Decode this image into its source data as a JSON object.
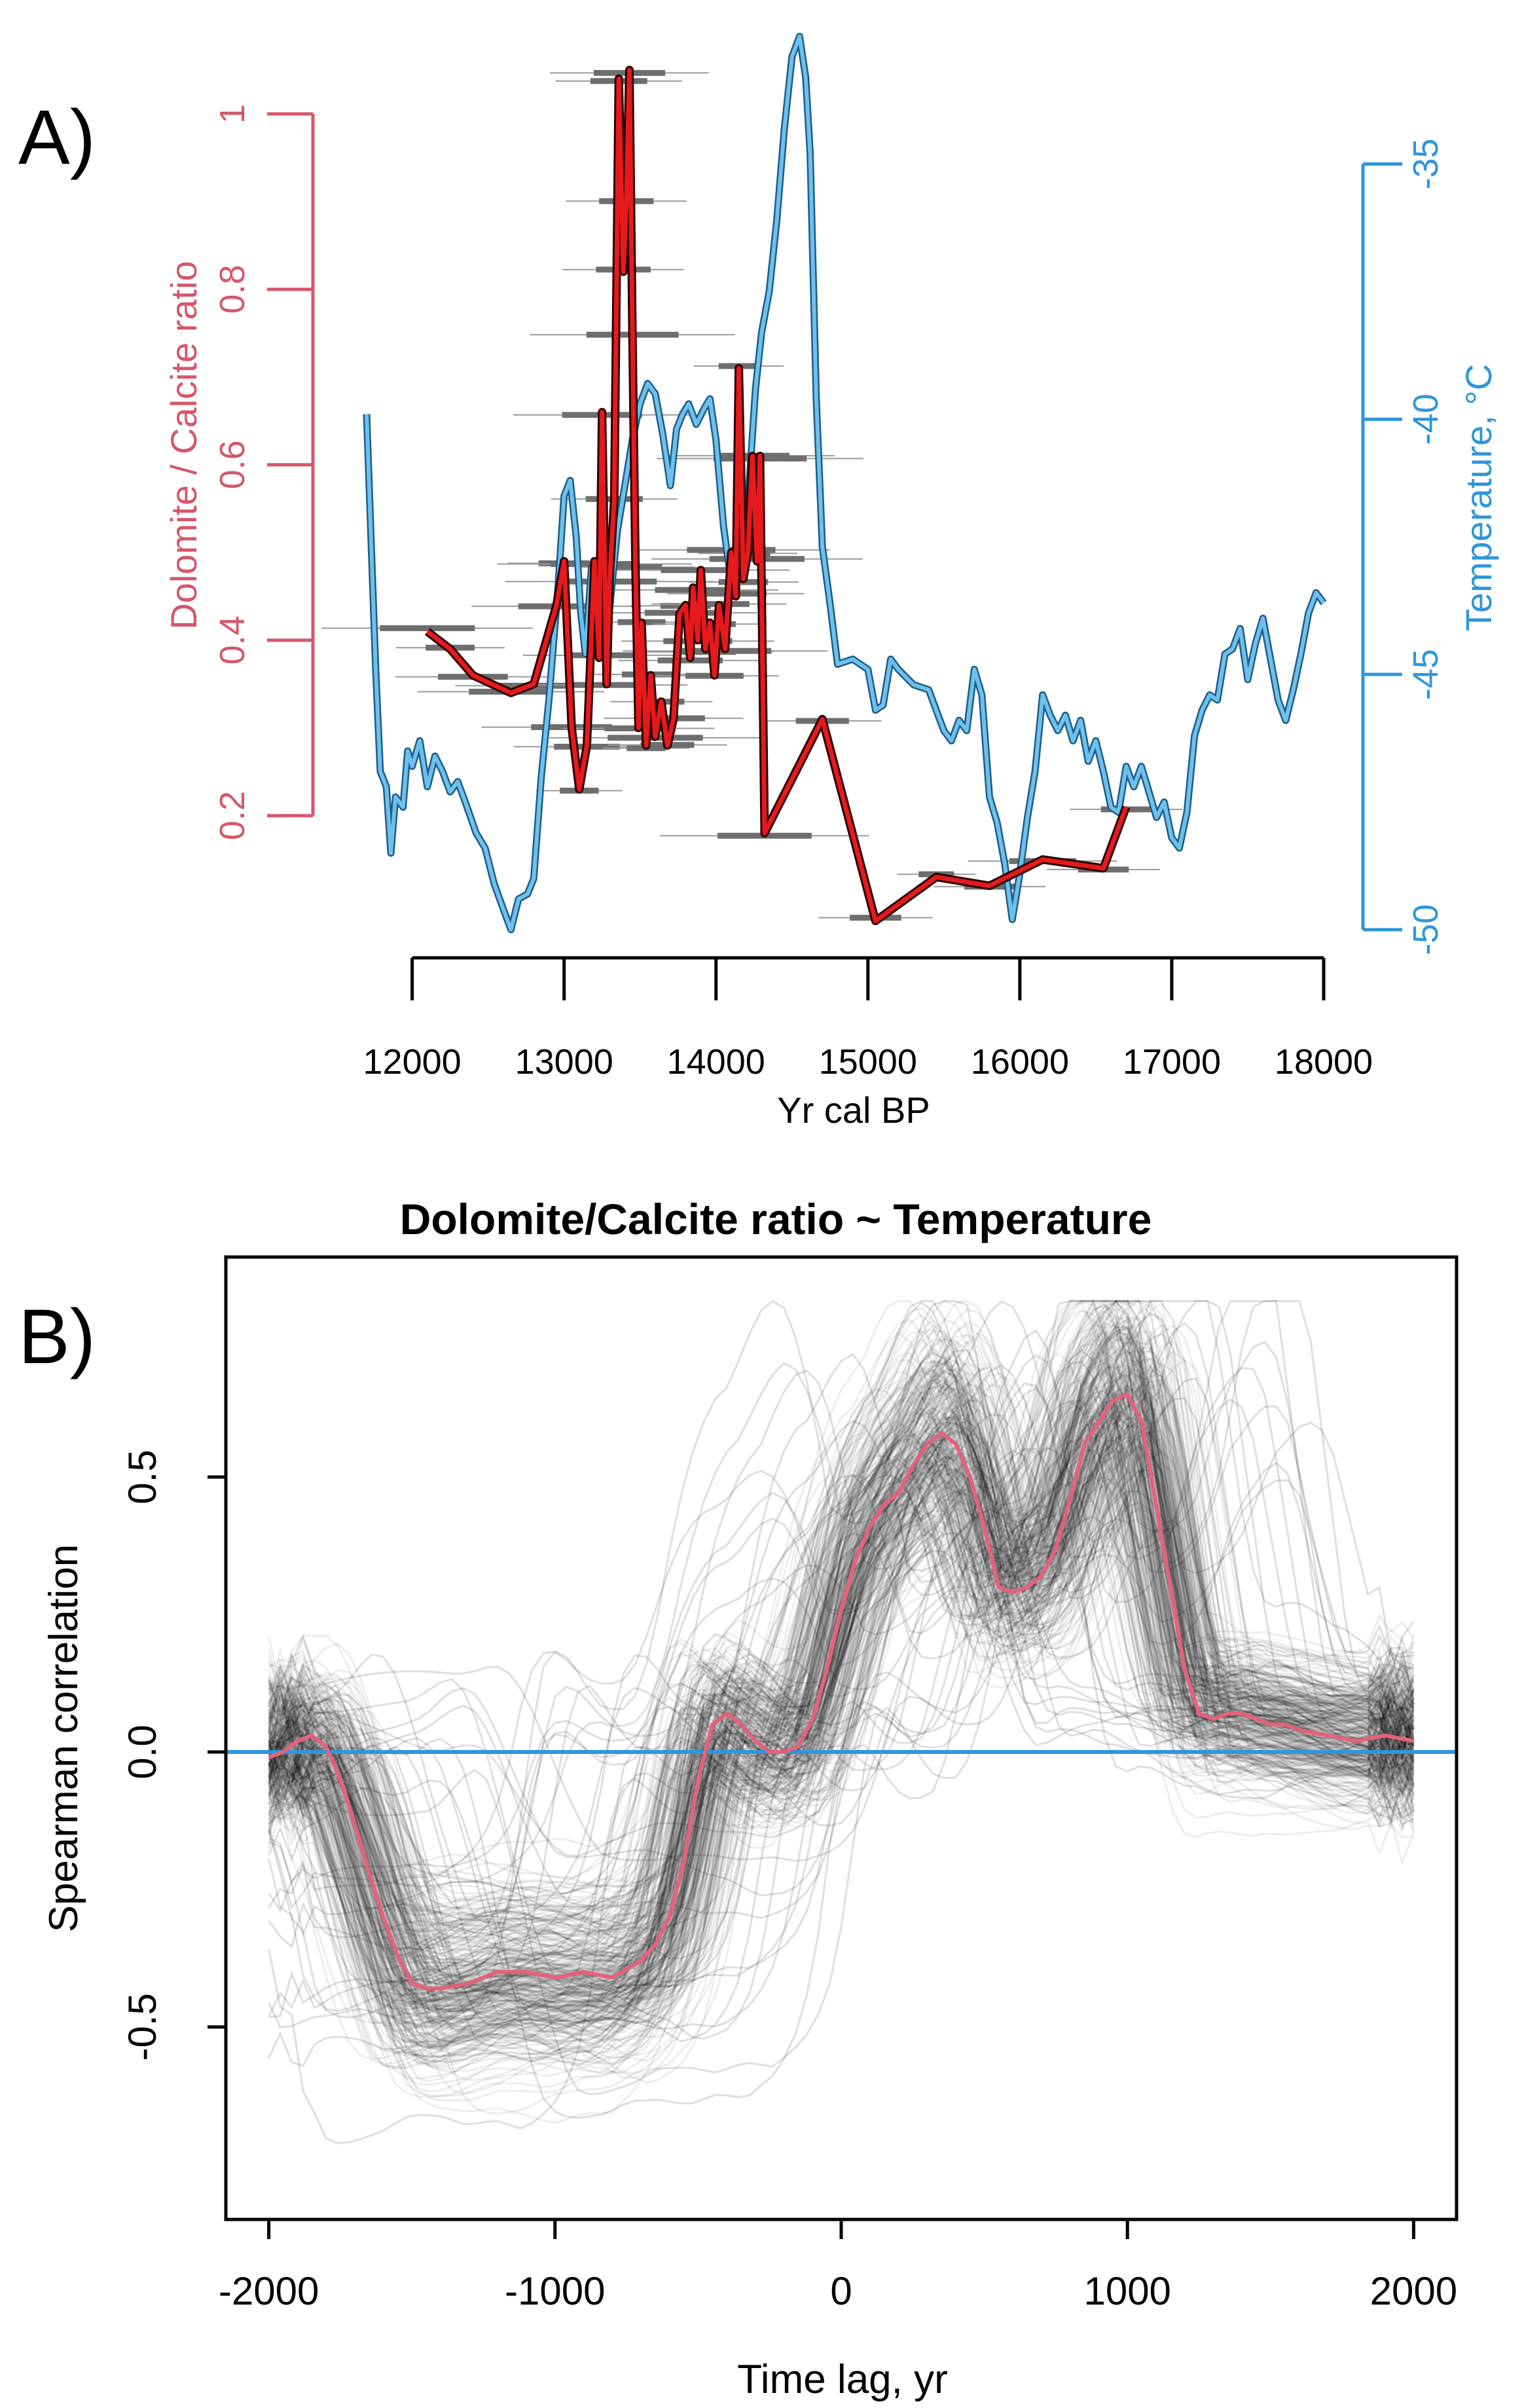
{
  "chart_data": [
    {
      "panel_label": "A)",
      "type": "line",
      "xlabel": "Yr cal BP",
      "x_ticks": [
        12000,
        13000,
        14000,
        15000,
        16000,
        17000,
        18000
      ],
      "xlim": [
        11700,
        18000
      ],
      "left_axis": {
        "label": "Dolomite / Calcite ratio",
        "ticks": [
          "0.2",
          "0.4",
          "0.6",
          "0.8",
          "1"
        ],
        "range": [
          0.07,
          1.1
        ],
        "color": "#d6566a"
      },
      "right_axis": {
        "label": "Temperature, °C",
        "ticks": [
          "-50",
          "-45",
          "-40",
          "-35"
        ],
        "range": [
          -50,
          -32.3
        ],
        "color": "#2e96dc"
      },
      "series": [
        {
          "axis": "left",
          "color": "#e41a1c",
          "outline": "#2a0000",
          "points": [
            [
              12100,
              0.41
            ],
            [
              12250,
              0.39
            ],
            [
              12400,
              0.36
            ],
            [
              12650,
              0.34
            ],
            [
              12800,
              0.35
            ],
            [
              12950,
              0.44
            ],
            [
              13000,
              0.49
            ],
            [
              13050,
              0.3
            ],
            [
              13100,
              0.23
            ],
            [
              13150,
              0.28
            ],
            [
              13200,
              0.49
            ],
            [
              13230,
              0.38
            ],
            [
              13250,
              0.66
            ],
            [
              13280,
              0.35
            ],
            [
              13300,
              0.47
            ],
            [
              13330,
              0.56
            ],
            [
              13360,
              1.04
            ],
            [
              13390,
              0.82
            ],
            [
              13410,
              0.9
            ],
            [
              13430,
              1.05
            ],
            [
              13450,
              0.75
            ],
            [
              13470,
              0.48
            ],
            [
              13490,
              0.3
            ],
            [
              13510,
              0.42
            ],
            [
              13540,
              0.28
            ],
            [
              13570,
              0.36
            ],
            [
              13600,
              0.29
            ],
            [
              13640,
              0.33
            ],
            [
              13680,
              0.28
            ],
            [
              13720,
              0.31
            ],
            [
              13760,
              0.43
            ],
            [
              13800,
              0.44
            ],
            [
              13830,
              0.38
            ],
            [
              13850,
              0.46
            ],
            [
              13880,
              0.4
            ],
            [
              13900,
              0.48
            ],
            [
              13930,
              0.39
            ],
            [
              13960,
              0.42
            ],
            [
              13990,
              0.36
            ],
            [
              14020,
              0.44
            ],
            [
              14060,
              0.39
            ],
            [
              14100,
              0.5
            ],
            [
              14130,
              0.45
            ],
            [
              14150,
              0.71
            ],
            [
              14180,
              0.47
            ],
            [
              14210,
              0.5
            ],
            [
              14240,
              0.61
            ],
            [
              14270,
              0.49
            ],
            [
              14290,
              0.61
            ],
            [
              14320,
              0.18
            ],
            [
              14700,
              0.31
            ],
            [
              15050,
              0.08
            ],
            [
              15450,
              0.13
            ],
            [
              15800,
              0.12
            ],
            [
              16150,
              0.15
            ],
            [
              16550,
              0.14
            ],
            [
              16700,
              0.21
            ]
          ]
        },
        {
          "axis": "right",
          "color": "#6ec0ec",
          "outline": "#1d5c86",
          "points": [
            [
              11700,
              -39.9
            ],
            [
              11760,
              -44.9
            ],
            [
              11790,
              -46.9
            ],
            [
              11830,
              -47.2
            ],
            [
              11860,
              -48.5
            ],
            [
              11890,
              -47.4
            ],
            [
              11940,
              -47.6
            ],
            [
              11970,
              -46.5
            ],
            [
              12000,
              -46.8
            ],
            [
              12050,
              -46.3
            ],
            [
              12100,
              -47.2
            ],
            [
              12150,
              -46.6
            ],
            [
              12200,
              -46.9
            ],
            [
              12250,
              -47.3
            ],
            [
              12300,
              -47.1
            ],
            [
              12350,
              -47.5
            ],
            [
              12420,
              -48.1
            ],
            [
              12480,
              -48.4
            ],
            [
              12540,
              -49.1
            ],
            [
              12600,
              -49.6
            ],
            [
              12650,
              -50.0
            ],
            [
              12700,
              -49.4
            ],
            [
              12760,
              -49.3
            ],
            [
              12800,
              -49.0
            ],
            [
              12850,
              -47.0
            ],
            [
              12900,
              -45.5
            ],
            [
              12960,
              -43.3
            ],
            [
              13000,
              -41.5
            ],
            [
              13040,
              -41.2
            ],
            [
              13080,
              -42.3
            ],
            [
              13110,
              -43.8
            ],
            [
              13140,
              -44.6
            ],
            [
              13180,
              -42.9
            ],
            [
              13220,
              -43.6
            ],
            [
              13260,
              -42.3
            ],
            [
              13300,
              -43.7
            ],
            [
              13350,
              -42.2
            ],
            [
              13400,
              -41.3
            ],
            [
              13450,
              -40.4
            ],
            [
              13500,
              -39.7
            ],
            [
              13550,
              -39.3
            ],
            [
              13600,
              -39.5
            ],
            [
              13650,
              -40.3
            ],
            [
              13700,
              -41.3
            ],
            [
              13740,
              -40.2
            ],
            [
              13780,
              -39.9
            ],
            [
              13820,
              -39.7
            ],
            [
              13870,
              -40.1
            ],
            [
              13920,
              -39.8
            ],
            [
              13960,
              -39.6
            ],
            [
              14000,
              -40.4
            ],
            [
              14050,
              -42.1
            ],
            [
              14100,
              -43.2
            ],
            [
              14140,
              -42.5
            ],
            [
              14180,
              -43.1
            ],
            [
              14220,
              -41.2
            ],
            [
              14260,
              -39.4
            ],
            [
              14300,
              -38.3
            ],
            [
              14350,
              -37.5
            ],
            [
              14400,
              -36.1
            ],
            [
              14450,
              -34.3
            ],
            [
              14500,
              -32.9
            ],
            [
              14550,
              -32.5
            ],
            [
              14590,
              -33.3
            ],
            [
              14620,
              -34.8
            ],
            [
              14660,
              -39.6
            ],
            [
              14700,
              -42.5
            ],
            [
              14750,
              -43.6
            ],
            [
              14800,
              -44.8
            ],
            [
              14900,
              -44.7
            ],
            [
              15000,
              -44.9
            ],
            [
              15050,
              -45.7
            ],
            [
              15100,
              -45.6
            ],
            [
              15150,
              -44.7
            ],
            [
              15200,
              -44.9
            ],
            [
              15300,
              -45.2
            ],
            [
              15400,
              -45.3
            ],
            [
              15500,
              -46.1
            ],
            [
              15550,
              -46.3
            ],
            [
              15600,
              -45.9
            ],
            [
              15650,
              -46.1
            ],
            [
              15700,
              -44.9
            ],
            [
              15750,
              -45.4
            ],
            [
              15800,
              -47.4
            ],
            [
              15850,
              -47.9
            ],
            [
              15900,
              -48.7
            ],
            [
              15950,
              -49.8
            ],
            [
              16000,
              -48.9
            ],
            [
              16050,
              -47.8
            ],
            [
              16100,
              -46.9
            ],
            [
              16150,
              -45.4
            ],
            [
              16200,
              -45.8
            ],
            [
              16250,
              -46.1
            ],
            [
              16300,
              -45.8
            ],
            [
              16350,
              -46.3
            ],
            [
              16400,
              -45.9
            ],
            [
              16450,
              -46.7
            ],
            [
              16500,
              -46.3
            ],
            [
              16550,
              -46.9
            ],
            [
              16600,
              -47.6
            ],
            [
              16650,
              -47.7
            ],
            [
              16700,
              -46.8
            ],
            [
              16750,
              -47.2
            ],
            [
              16800,
              -46.8
            ],
            [
              16850,
              -47.3
            ],
            [
              16900,
              -47.8
            ],
            [
              16950,
              -47.5
            ],
            [
              17000,
              -48.2
            ],
            [
              17050,
              -48.4
            ],
            [
              17100,
              -47.7
            ],
            [
              17150,
              -46.2
            ],
            [
              17200,
              -45.7
            ],
            [
              17250,
              -45.4
            ],
            [
              17300,
              -45.5
            ],
            [
              17350,
              -44.6
            ],
            [
              17400,
              -44.5
            ],
            [
              17450,
              -44.1
            ],
            [
              17500,
              -45.1
            ],
            [
              17550,
              -44.4
            ],
            [
              17600,
              -43.9
            ],
            [
              17650,
              -44.7
            ],
            [
              17700,
              -45.5
            ],
            [
              17750,
              -45.9
            ],
            [
              17800,
              -45.3
            ],
            [
              17850,
              -44.6
            ],
            [
              17900,
              -43.8
            ],
            [
              17950,
              -43.4
            ],
            [
              18000,
              -43.6
            ]
          ]
        }
      ]
    },
    {
      "panel_label": "B)",
      "type": "line",
      "title": "Dolomite/Calcite ratio ~ Temperature",
      "xlabel": "Time lag, yr",
      "ylabel": "Spearman correlation",
      "x_ticks": [
        "-2000",
        "-1000",
        "0",
        "1000",
        "2000"
      ],
      "y_ticks": [
        "-0.5",
        "0.0",
        "0.5"
      ],
      "xlim": [
        -2150,
        2150
      ],
      "ylim": [
        -0.85,
        0.9
      ],
      "zero_line_color": "#2e96dc",
      "ensemble_color": "#000000",
      "median_color": "#e4627a",
      "median": {
        "x": [
          -2000,
          -1950,
          -1900,
          -1850,
          -1800,
          -1750,
          -1700,
          -1650,
          -1600,
          -1550,
          -1500,
          -1450,
          -1400,
          -1300,
          -1200,
          -1100,
          -1000,
          -900,
          -800,
          -700,
          -650,
          -600,
          -550,
          -500,
          -450,
          -400,
          -350,
          -300,
          -250,
          -200,
          -150,
          -100,
          -50,
          0,
          50,
          100,
          150,
          200,
          250,
          300,
          350,
          400,
          450,
          500,
          550,
          600,
          650,
          700,
          750,
          800,
          850,
          900,
          950,
          1000,
          1050,
          1100,
          1150,
          1200,
          1250,
          1300,
          1350,
          1400,
          1450,
          1500,
          1550,
          1600,
          1700,
          1800,
          1900,
          2000
        ],
        "y": [
          -0.01,
          0.0,
          0.02,
          0.03,
          0.01,
          -0.05,
          -0.13,
          -0.22,
          -0.3,
          -0.37,
          -0.42,
          -0.43,
          -0.43,
          -0.42,
          -0.4,
          -0.4,
          -0.41,
          -0.4,
          -0.41,
          -0.38,
          -0.35,
          -0.3,
          -0.2,
          -0.05,
          0.05,
          0.07,
          0.05,
          0.02,
          0.0,
          0.0,
          0.01,
          0.06,
          0.15,
          0.26,
          0.35,
          0.41,
          0.45,
          0.47,
          0.52,
          0.56,
          0.58,
          0.56,
          0.5,
          0.41,
          0.3,
          0.29,
          0.3,
          0.32,
          0.37,
          0.46,
          0.56,
          0.6,
          0.64,
          0.65,
          0.6,
          0.45,
          0.3,
          0.15,
          0.07,
          0.06,
          0.07,
          0.07,
          0.06,
          0.05,
          0.05,
          0.04,
          0.03,
          0.02,
          0.03,
          0.02
        ]
      }
    }
  ]
}
